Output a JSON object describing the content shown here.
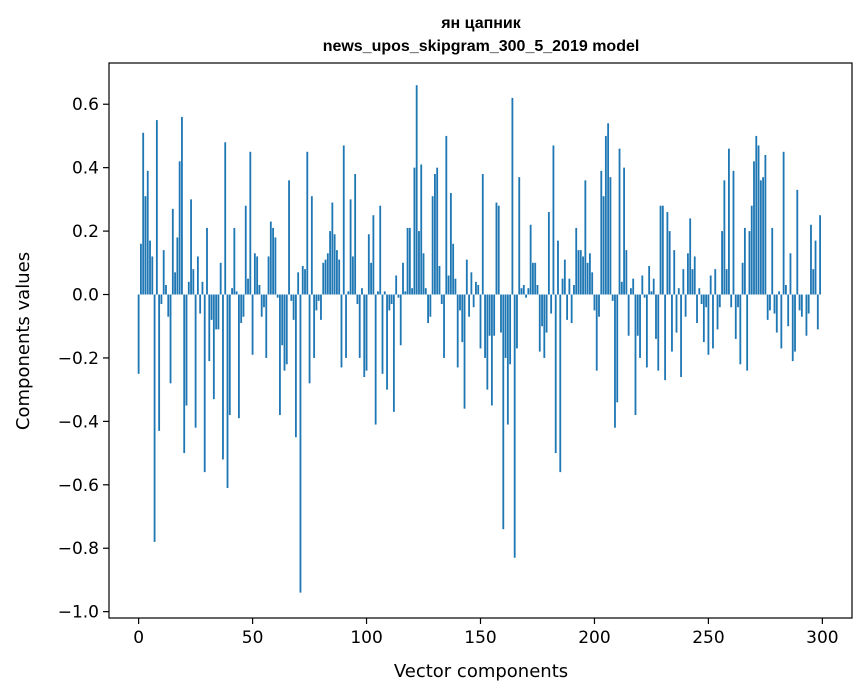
{
  "chart_data": {
    "type": "bar",
    "title_line1": "ян цапник",
    "title_line2": "news_upos_skipgram_300_5_2019 model",
    "xlabel": "Vector components",
    "ylabel": "Components values",
    "xlim": [
      -13,
      313
    ],
    "ylim": [
      -1.02,
      0.73
    ],
    "xticks": [
      0,
      50,
      100,
      150,
      200,
      250,
      300
    ],
    "yticks": [
      -1.0,
      -0.8,
      -0.6,
      -0.4,
      -0.2,
      0.0,
      0.2,
      0.4,
      0.6
    ],
    "ytick_labels": [
      "−1.0",
      "−0.8",
      "−0.6",
      "−0.4",
      "−0.2",
      "0.0",
      "0.2",
      "0.4",
      "0.6"
    ],
    "grid": false,
    "bar_color": "#1f77b4",
    "values": [
      -0.25,
      0.16,
      0.51,
      0.31,
      0.39,
      0.17,
      0.12,
      -0.78,
      0.55,
      -0.43,
      -0.03,
      0.14,
      0.03,
      -0.07,
      -0.28,
      0.27,
      0.07,
      0.18,
      0.42,
      0.56,
      -0.5,
      -0.35,
      0.04,
      0.3,
      0.08,
      -0.42,
      0.12,
      -0.06,
      0.04,
      -0.56,
      0.21,
      -0.21,
      -0.08,
      -0.33,
      -0.11,
      -0.11,
      0.1,
      -0.52,
      0.48,
      -0.61,
      -0.38,
      0.02,
      0.21,
      0.01,
      -0.39,
      -0.09,
      -0.07,
      0.28,
      0.05,
      0.45,
      -0.19,
      0.13,
      0.12,
      0.03,
      -0.07,
      -0.04,
      -0.2,
      0.12,
      0.23,
      0.21,
      0.18,
      -0.01,
      -0.38,
      -0.16,
      -0.24,
      -0.22,
      0.36,
      -0.02,
      -0.08,
      -0.45,
      0.07,
      -0.94,
      0.09,
      0.08,
      0.45,
      -0.28,
      0.31,
      -0.2,
      -0.05,
      -0.02,
      -0.08,
      0.1,
      0.11,
      0.13,
      0.2,
      0.29,
      0.19,
      0.14,
      0.11,
      -0.23,
      0.47,
      -0.2,
      0.01,
      0.3,
      0.12,
      0.38,
      -0.03,
      -0.2,
      0.02,
      -0.26,
      -0.24,
      0.19,
      0.1,
      0.25,
      -0.41,
      0.01,
      0.28,
      -0.25,
      0.01,
      -0.3,
      -0.05,
      -0.03,
      -0.37,
      0.06,
      -0.01,
      -0.16,
      0.1,
      0.01,
      0.21,
      0.21,
      0.02,
      0.4,
      0.66,
      0.2,
      0.41,
      0.13,
      0.02,
      -0.09,
      -0.07,
      0.31,
      0.38,
      0.4,
      0.09,
      -0.03,
      -0.2,
      0.5,
      0.06,
      0.32,
      0.16,
      0.05,
      -0.23,
      -0.05,
      -0.15,
      -0.36,
      0.11,
      -0.07,
      0.07,
      -0.04,
      0.04,
      0.03,
      -0.17,
      0.38,
      -0.2,
      -0.3,
      -0.13,
      -0.35,
      -0.13,
      0.29,
      0.28,
      -0.12,
      -0.74,
      -0.2,
      -0.41,
      -0.22,
      0.62,
      -0.83,
      -0.17,
      0.37,
      0.02,
      0.03,
      -0.01,
      0.02,
      0.22,
      0.1,
      0.1,
      0.03,
      -0.18,
      -0.1,
      -0.2,
      -0.12,
      0.26,
      -0.06,
      0.47,
      -0.5,
      0.17,
      -0.56,
      0.05,
      0.11,
      -0.08,
      0.05,
      -0.09,
      0.03,
      0.21,
      0.14,
      0.14,
      0.12,
      0.36,
      0.1,
      0.13,
      0.07,
      -0.05,
      -0.24,
      -0.07,
      0.39,
      0.31,
      0.5,
      0.54,
      0.37,
      -0.02,
      -0.42,
      -0.34,
      0.46,
      0.04,
      0.4,
      0.14,
      -0.13,
      0.02,
      0.05,
      -0.38,
      -0.13,
      -0.2,
      0.06,
      -0.01,
      -0.23,
      0.09,
      0.01,
      0.05,
      -0.14,
      -0.24,
      0.28,
      0.28,
      -0.27,
      0.26,
      0.2,
      -0.18,
      0.14,
      -0.12,
      0.02,
      -0.26,
      0.08,
      -0.07,
      0.13,
      0.24,
      0.08,
      0.12,
      -0.09,
      0.02,
      -0.03,
      -0.15,
      -0.04,
      -0.19,
      0.06,
      -0.17,
      0.08,
      -0.11,
      -0.04,
      0.2,
      0.36,
      0.08,
      0.46,
      -0.04,
      0.39,
      -0.14,
      -0.04,
      -0.22,
      0.1,
      0.21,
      -0.24,
      0.2,
      0.28,
      0.42,
      0.5,
      0.47,
      0.36,
      0.37,
      0.44,
      -0.08,
      -0.05,
      0.21,
      -0.06,
      -0.12,
      0.01,
      -0.17,
      0.45,
      0.03,
      -0.1,
      0.13,
      -0.21,
      -0.18,
      0.33,
      -0.05,
      -0.07,
      0.0,
      -0.13,
      -0.06,
      0.22,
      0.08,
      0.17,
      -0.11,
      0.25
    ]
  }
}
